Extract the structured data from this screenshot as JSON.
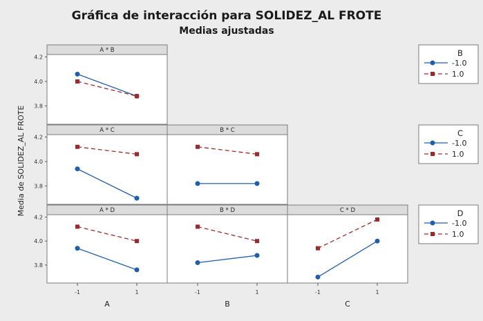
{
  "chart_data": {
    "type": "line",
    "title": "Gráfica de interacción para SOLIDEZ_AL FROTE",
    "subtitle": "Medias ajustadas",
    "ylabel": "Media de SOLIDEZ_AL FROTE",
    "ylim": [
      3.65,
      4.22
    ],
    "yticks": [
      "4.2",
      "4.0",
      "3.8"
    ],
    "xticks": [
      "-1",
      "1"
    ],
    "xlabels": [
      "A",
      "B",
      "C"
    ],
    "panels": [
      {
        "title": "A * B",
        "row": 0,
        "col": 0,
        "trace": "B",
        "series": [
          {
            "name": "-1.0",
            "values": [
              4.06,
              3.88
            ]
          },
          {
            "name": "1.0",
            "values": [
              4.0,
              3.88
            ]
          }
        ]
      },
      {
        "title": "A * C",
        "row": 1,
        "col": 0,
        "trace": "C",
        "series": [
          {
            "name": "-1.0",
            "values": [
              3.94,
              3.7
            ]
          },
          {
            "name": "1.0",
            "values": [
              4.12,
              4.06
            ]
          }
        ]
      },
      {
        "title": "B * C",
        "row": 1,
        "col": 1,
        "trace": "C",
        "series": [
          {
            "name": "-1.0",
            "values": [
              3.82,
              3.82
            ]
          },
          {
            "name": "1.0",
            "values": [
              4.12,
              4.06
            ]
          }
        ]
      },
      {
        "title": "A * D",
        "row": 2,
        "col": 0,
        "trace": "D",
        "series": [
          {
            "name": "-1.0",
            "values": [
              3.94,
              3.76
            ]
          },
          {
            "name": "1.0",
            "values": [
              4.12,
              4.0
            ]
          }
        ]
      },
      {
        "title": "B * D",
        "row": 2,
        "col": 1,
        "trace": "D",
        "series": [
          {
            "name": "-1.0",
            "values": [
              3.82,
              3.88
            ]
          },
          {
            "name": "1.0",
            "values": [
              4.12,
              4.0
            ]
          }
        ]
      },
      {
        "title": "C * D",
        "row": 2,
        "col": 2,
        "trace": "D",
        "series": [
          {
            "name": "-1.0",
            "values": [
              3.7,
              4.0
            ]
          },
          {
            "name": "1.0",
            "values": [
              3.94,
              4.18
            ]
          }
        ]
      }
    ],
    "legends": [
      {
        "title": "B",
        "entries": [
          "-1.0",
          "1.0"
        ]
      },
      {
        "title": "C",
        "entries": [
          "-1.0",
          "1.0"
        ]
      },
      {
        "title": "D",
        "entries": [
          "-1.0",
          "1.0"
        ]
      }
    ],
    "colors": {
      "low": "#1f5fa8",
      "high": "#9c2a2a",
      "frame": "#7a7a7a",
      "panel_bg": "#ffffff",
      "background": "#ececec"
    }
  }
}
